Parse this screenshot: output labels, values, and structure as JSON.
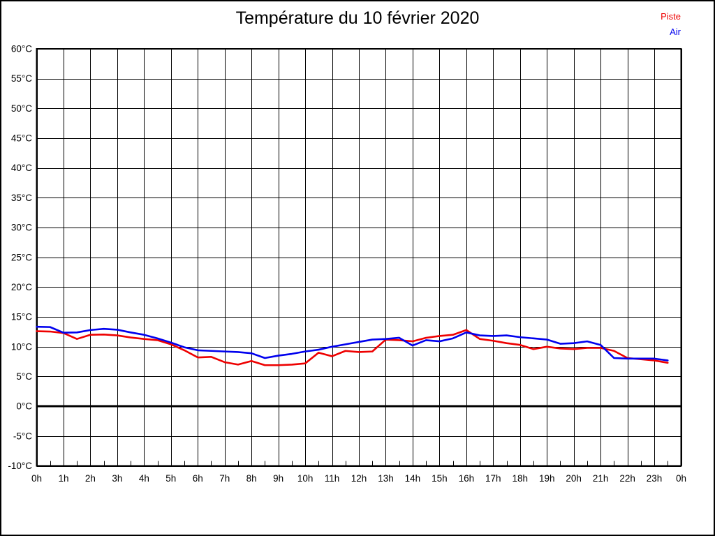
{
  "title": "Température du 10 février 2020",
  "legend": {
    "items": [
      {
        "label": "Piste",
        "color": "#ee0000"
      },
      {
        "label": "Air",
        "color": "#0000ee"
      }
    ]
  },
  "chart_data": {
    "type": "line",
    "title": "Température du 10 février 2020",
    "xlabel": "",
    "ylabel": "",
    "xlim": [
      0,
      24
    ],
    "ylim": [
      -10,
      60
    ],
    "y_tick_step": 5,
    "x_tick_step": 1,
    "minor_x_tick_step": 0.5,
    "grid": true,
    "zero_line_value": 0,
    "legend_position": "top-right",
    "x_tick_labels": [
      "0h",
      "1h",
      "2h",
      "3h",
      "4h",
      "5h",
      "6h",
      "7h",
      "8h",
      "9h",
      "10h",
      "11h",
      "12h",
      "13h",
      "14h",
      "15h",
      "16h",
      "17h",
      "18h",
      "19h",
      "20h",
      "21h",
      "22h",
      "23h",
      "0h"
    ],
    "y_tick_labels": [
      "60°C",
      "55°C",
      "50°C",
      "45°C",
      "40°C",
      "35°C",
      "30°C",
      "25°C",
      "20°C",
      "15°C",
      "10°C",
      "5°C",
      "0°C",
      "-5°C",
      "-10°C"
    ],
    "x_start": 0,
    "x_step": 0.5,
    "series": [
      {
        "name": "Piste",
        "color": "#ee0000",
        "values": [
          12.6,
          12.55,
          12.3,
          11.3,
          12.0,
          12.05,
          11.9,
          11.55,
          11.3,
          11.1,
          10.4,
          9.4,
          8.2,
          8.3,
          7.4,
          7.0,
          7.6,
          6.9,
          6.9,
          7.0,
          7.2,
          9.0,
          8.4,
          9.3,
          9.1,
          9.2,
          11.2,
          11.1,
          10.9,
          11.5,
          11.8,
          12.0,
          12.8,
          11.3,
          11.0,
          10.6,
          10.3,
          9.6,
          10.0,
          9.7,
          9.6,
          9.8,
          9.8,
          9.3,
          8.1,
          7.9,
          7.7,
          7.3
        ]
      },
      {
        "name": "Air",
        "color": "#0000ee",
        "values": [
          13.35,
          13.3,
          12.35,
          12.4,
          12.8,
          13.0,
          12.85,
          12.4,
          12.0,
          11.4,
          10.7,
          9.9,
          9.4,
          9.3,
          9.2,
          9.1,
          8.9,
          8.1,
          8.5,
          8.8,
          9.2,
          9.5,
          10.0,
          10.4,
          10.8,
          11.2,
          11.3,
          11.5,
          10.2,
          11.1,
          10.9,
          11.4,
          12.4,
          11.9,
          11.8,
          11.9,
          11.6,
          11.4,
          11.2,
          10.5,
          10.6,
          10.9,
          10.3,
          8.1,
          8.0,
          8.0,
          8.0,
          7.7
        ]
      }
    ]
  }
}
